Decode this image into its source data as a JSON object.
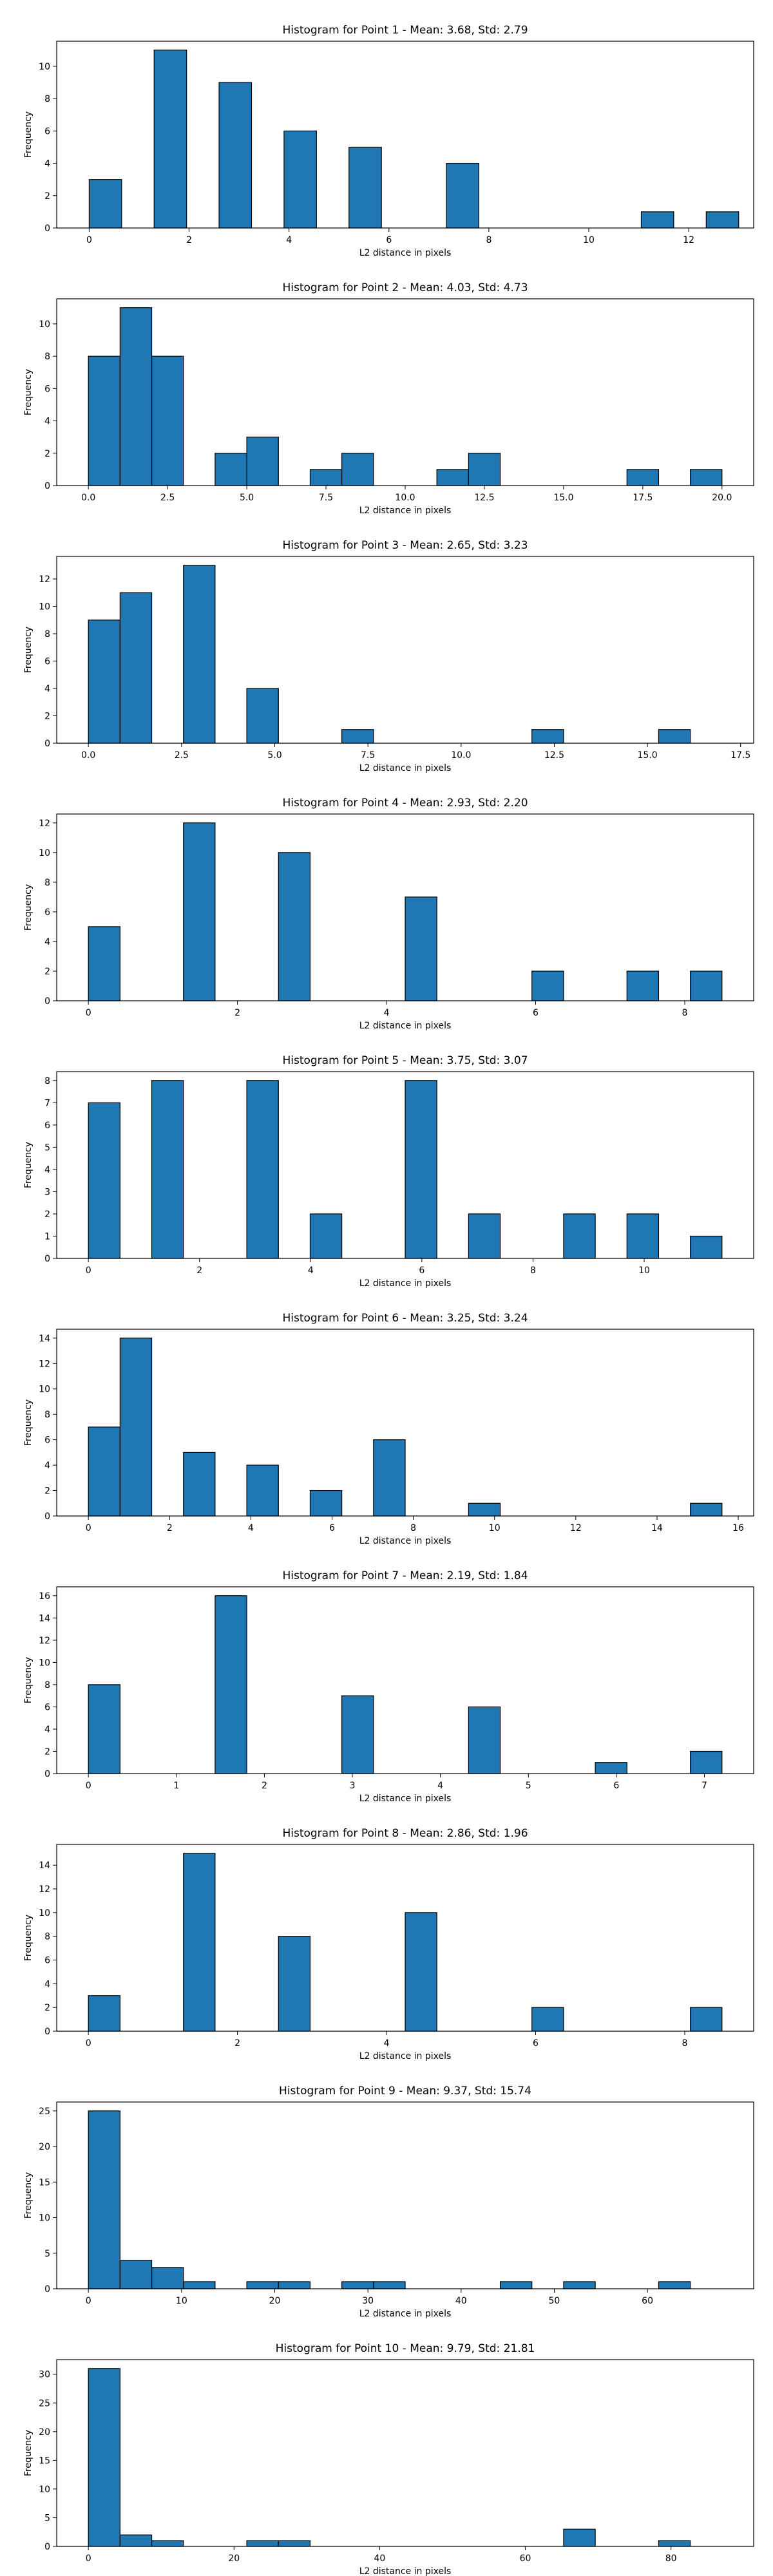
{
  "chart_data": [
    {
      "type": "bar",
      "title": "Histogram for Point 1 - Mean: 3.68, Std: 2.79",
      "xlabel": "L2 distance in pixels",
      "ylabel": "Frequency",
      "xlim": [
        -0.65,
        13.3
      ],
      "ylim": [
        0,
        11.55
      ],
      "xticks": [
        0,
        2,
        4,
        6,
        8,
        10,
        12
      ],
      "xtick_labels": [
        "0",
        "2",
        "4",
        "6",
        "8",
        "10",
        "12"
      ],
      "yticks": [
        0,
        2,
        4,
        6,
        8,
        10
      ],
      "bin_edges": [
        0,
        0.65,
        1.3,
        1.95,
        2.6,
        3.25,
        3.9,
        4.55,
        5.2,
        5.85,
        6.5,
        7.15,
        7.8,
        8.45,
        9.1,
        9.75,
        10.4,
        11.05,
        11.7,
        12.35,
        13.0
      ],
      "counts": [
        3,
        0,
        11,
        0,
        9,
        0,
        6,
        0,
        5,
        0,
        0,
        4,
        0,
        0,
        0,
        0,
        0,
        1,
        0,
        1
      ]
    },
    {
      "type": "bar",
      "title": "Histogram for Point 2 - Mean: 4.03, Std: 4.73",
      "xlabel": "L2 distance in pixels",
      "ylabel": "Frequency",
      "xlim": [
        -1,
        21
      ],
      "ylim": [
        0,
        11.55
      ],
      "xticks": [
        0,
        2.5,
        5,
        7.5,
        10,
        12.5,
        15,
        17.5,
        20
      ],
      "xtick_labels": [
        "0.0",
        "2.5",
        "5.0",
        "7.5",
        "10.0",
        "12.5",
        "15.0",
        "17.5",
        "20.0"
      ],
      "yticks": [
        0,
        2,
        4,
        6,
        8,
        10
      ],
      "bin_edges": [
        0,
        1,
        2,
        3,
        4,
        5,
        6,
        7,
        8,
        9,
        10,
        11,
        12,
        13,
        14,
        15,
        16,
        17,
        18,
        19,
        20
      ],
      "counts": [
        8,
        11,
        8,
        0,
        2,
        3,
        0,
        1,
        2,
        0,
        0,
        1,
        2,
        0,
        0,
        0,
        0,
        1,
        0,
        1
      ]
    },
    {
      "type": "bar",
      "title": "Histogram for Point 3 - Mean: 2.65, Std: 3.23",
      "xlabel": "L2 distance in pixels",
      "ylabel": "Frequency",
      "xlim": [
        -0.85,
        17.85
      ],
      "ylim": [
        0,
        13.65
      ],
      "xticks": [
        0,
        2.5,
        5,
        7.5,
        10,
        12.5,
        15,
        17.5
      ],
      "xtick_labels": [
        "0.0",
        "2.5",
        "5.0",
        "7.5",
        "10.0",
        "12.5",
        "15.0",
        "17.5"
      ],
      "yticks": [
        0,
        2,
        4,
        6,
        8,
        10,
        12
      ],
      "bin_edges": [
        0,
        0.85,
        1.7,
        2.55,
        3.4,
        4.25,
        5.1,
        5.95,
        6.8,
        7.65,
        8.5,
        9.35,
        10.2,
        11.05,
        11.9,
        12.75,
        13.6,
        14.45,
        15.3,
        16.15,
        17.0
      ],
      "counts": [
        9,
        11,
        0,
        13,
        0,
        4,
        0,
        0,
        1,
        0,
        0,
        0,
        0,
        0,
        1,
        0,
        0,
        0,
        1,
        0
      ]
    },
    {
      "type": "bar",
      "title": "Histogram for Point 4 - Mean: 2.93, Std: 2.20",
      "xlabel": "L2 distance in pixels",
      "ylabel": "Frequency",
      "xlim": [
        -0.425,
        8.925
      ],
      "ylim": [
        0,
        12.6
      ],
      "xticks": [
        0,
        2,
        4,
        6,
        8
      ],
      "xtick_labels": [
        "0",
        "2",
        "4",
        "6",
        "8"
      ],
      "yticks": [
        0,
        2,
        4,
        6,
        8,
        10,
        12
      ],
      "bin_edges": [
        0,
        0.425,
        0.85,
        1.275,
        1.7,
        2.125,
        2.55,
        2.975,
        3.4,
        3.825,
        4.25,
        4.675,
        5.1,
        5.525,
        5.95,
        6.375,
        6.8,
        7.225,
        7.65,
        8.075,
        8.5
      ],
      "counts": [
        5,
        0,
        0,
        12,
        0,
        0,
        10,
        0,
        0,
        0,
        7,
        0,
        0,
        0,
        2,
        0,
        0,
        2,
        0,
        2
      ]
    },
    {
      "type": "bar",
      "title": "Histogram for Point 5 - Mean: 3.75, Std: 3.07",
      "xlabel": "L2 distance in pixels",
      "ylabel": "Frequency",
      "xlim": [
        -0.57,
        11.97
      ],
      "ylim": [
        0,
        8.4
      ],
      "xticks": [
        0,
        2,
        4,
        6,
        8,
        10
      ],
      "xtick_labels": [
        "0",
        "2",
        "4",
        "6",
        "8",
        "10"
      ],
      "yticks": [
        0,
        1,
        2,
        3,
        4,
        5,
        6,
        7,
        8
      ],
      "bin_edges": [
        0,
        0.57,
        1.14,
        1.71,
        2.28,
        2.85,
        3.42,
        3.99,
        4.56,
        5.13,
        5.7,
        6.27,
        6.84,
        7.41,
        7.98,
        8.55,
        9.12,
        9.69,
        10.26,
        10.83,
        11.4
      ],
      "counts": [
        7,
        0,
        8,
        0,
        0,
        8,
        0,
        2,
        0,
        0,
        8,
        0,
        2,
        0,
        0,
        2,
        0,
        2,
        0,
        1
      ]
    },
    {
      "type": "bar",
      "title": "Histogram for Point 6 - Mean: 3.25, Std: 3.24",
      "xlabel": "L2 distance in pixels",
      "ylabel": "Frequency",
      "xlim": [
        -0.78,
        16.38
      ],
      "ylim": [
        0,
        14.7
      ],
      "xticks": [
        0,
        2,
        4,
        6,
        8,
        10,
        12,
        14,
        16
      ],
      "xtick_labels": [
        "0",
        "2",
        "4",
        "6",
        "8",
        "10",
        "12",
        "14",
        "16"
      ],
      "yticks": [
        0,
        2,
        4,
        6,
        8,
        10,
        12,
        14
      ],
      "bin_edges": [
        0,
        0.78,
        1.56,
        2.34,
        3.12,
        3.9,
        4.68,
        5.46,
        6.24,
        7.02,
        7.8,
        8.58,
        9.36,
        10.14,
        10.92,
        11.7,
        12.48,
        13.26,
        14.04,
        14.82,
        15.6
      ],
      "counts": [
        7,
        14,
        0,
        5,
        0,
        4,
        0,
        2,
        0,
        6,
        0,
        0,
        1,
        0,
        0,
        0,
        0,
        0,
        0,
        1
      ]
    },
    {
      "type": "bar",
      "title": "Histogram for Point 7 - Mean: 2.19, Std: 1.84",
      "xlabel": "L2 distance in pixels",
      "ylabel": "Frequency",
      "xlim": [
        -0.36,
        7.56
      ],
      "ylim": [
        0,
        16.8
      ],
      "xticks": [
        0,
        1,
        2,
        3,
        4,
        5,
        6,
        7
      ],
      "xtick_labels": [
        "0",
        "1",
        "2",
        "3",
        "4",
        "5",
        "6",
        "7"
      ],
      "yticks": [
        0,
        2,
        4,
        6,
        8,
        10,
        12,
        14,
        16
      ],
      "bin_edges": [
        0,
        0.36,
        0.72,
        1.08,
        1.44,
        1.8,
        2.16,
        2.52,
        2.88,
        3.24,
        3.6,
        3.96,
        4.32,
        4.68,
        5.04,
        5.4,
        5.76,
        6.12,
        6.48,
        6.84,
        7.2
      ],
      "counts": [
        8,
        0,
        0,
        0,
        16,
        0,
        0,
        0,
        7,
        0,
        0,
        0,
        6,
        0,
        0,
        0,
        1,
        0,
        0,
        2
      ]
    },
    {
      "type": "bar",
      "title": "Histogram for Point 8 - Mean: 2.86, Std: 1.96",
      "xlabel": "L2 distance in pixels",
      "ylabel": "Frequency",
      "xlim": [
        -0.425,
        8.925
      ],
      "ylim": [
        0,
        15.75
      ],
      "xticks": [
        0,
        2,
        4,
        6,
        8
      ],
      "xtick_labels": [
        "0",
        "2",
        "4",
        "6",
        "8"
      ],
      "yticks": [
        0,
        2,
        4,
        6,
        8,
        10,
        12,
        14
      ],
      "bin_edges": [
        0,
        0.425,
        0.85,
        1.275,
        1.7,
        2.125,
        2.55,
        2.975,
        3.4,
        3.825,
        4.25,
        4.675,
        5.1,
        5.525,
        5.95,
        6.375,
        6.8,
        7.225,
        7.65,
        8.075,
        8.5
      ],
      "counts": [
        3,
        0,
        0,
        15,
        0,
        0,
        8,
        0,
        0,
        0,
        10,
        0,
        0,
        0,
        2,
        0,
        0,
        0,
        0,
        2
      ]
    },
    {
      "type": "bar",
      "title": "Histogram for Point 9 - Mean: 9.37, Std: 15.74",
      "xlabel": "L2 distance in pixels",
      "ylabel": "Frequency",
      "xlim": [
        -3.4,
        71.4
      ],
      "ylim": [
        0,
        26.25
      ],
      "xticks": [
        0,
        10,
        20,
        30,
        40,
        50,
        60
      ],
      "xtick_labels": [
        "0",
        "10",
        "20",
        "30",
        "40",
        "50",
        "60"
      ],
      "yticks": [
        0,
        5,
        10,
        15,
        20,
        25
      ],
      "bin_edges": [
        0,
        3.4,
        6.8,
        10.2,
        13.6,
        17.0,
        20.4,
        23.8,
        27.2,
        30.6,
        34.0,
        37.4,
        40.8,
        44.2,
        47.6,
        51.0,
        54.4,
        57.8,
        61.2,
        64.6,
        68.0
      ],
      "counts": [
        25,
        4,
        3,
        1,
        0,
        1,
        1,
        0,
        1,
        1,
        0,
        0,
        0,
        1,
        0,
        1,
        0,
        0,
        1,
        0
      ]
    },
    {
      "type": "bar",
      "title": "Histogram for Point 10 - Mean: 9.79, Std: 21.81",
      "xlabel": "L2 distance in pixels",
      "ylabel": "Frequency",
      "xlim": [
        -4.35,
        91.35
      ],
      "ylim": [
        0,
        32.55
      ],
      "xticks": [
        0,
        20,
        40,
        60,
        80
      ],
      "xtick_labels": [
        "0",
        "20",
        "40",
        "60",
        "80"
      ],
      "yticks": [
        0,
        5,
        10,
        15,
        20,
        25,
        30
      ],
      "bin_edges": [
        0,
        4.35,
        8.7,
        13.05,
        17.4,
        21.75,
        26.1,
        30.45,
        34.8,
        39.15,
        43.5,
        47.85,
        52.2,
        56.55,
        60.9,
        65.25,
        69.6,
        73.95,
        78.3,
        82.65,
        87.0
      ],
      "counts": [
        31,
        2,
        1,
        0,
        0,
        1,
        1,
        0,
        0,
        0,
        0,
        0,
        0,
        0,
        0,
        3,
        0,
        0,
        1,
        0
      ]
    }
  ]
}
